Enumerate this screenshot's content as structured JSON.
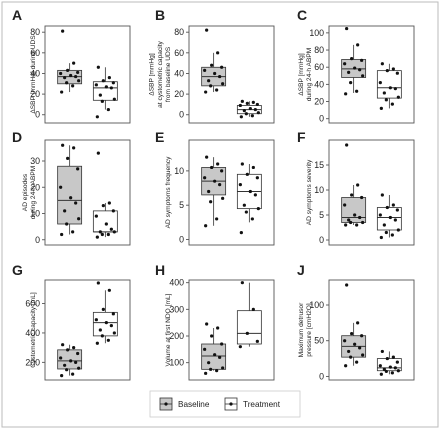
{
  "colors": {
    "baseline_fill": "#c8c8c8",
    "treatment_fill": "#ffffff",
    "stroke": "#333333",
    "point": "#111111",
    "frame": "#555555",
    "panel_border": "#bbbbbb"
  },
  "legend": {
    "baseline_label": "Baseline",
    "treatment_label": "Treatment",
    "placement": "bottom-center"
  },
  "chart_data": [
    {
      "type": "box",
      "letter": "A",
      "ylabel": [
        "ΔSBP [mmHg] during UDS"
      ],
      "yticks": [
        0,
        20,
        40,
        60,
        80
      ],
      "ylim": [
        -8,
        86
      ],
      "series": [
        {
          "group": "baseline",
          "stats": {
            "min": 22,
            "q1": 30,
            "median": 37,
            "q3": 43,
            "max": 50
          },
          "points": [
            81,
            50,
            43,
            41,
            40,
            38,
            37,
            36,
            33,
            31,
            28,
            22
          ]
        },
        {
          "group": "treatment",
          "stats": {
            "min": 5,
            "q1": 14,
            "median": 26,
            "q3": 32,
            "max": 46
          },
          "points": [
            46,
            36,
            33,
            31,
            29,
            27,
            26,
            19,
            15,
            13,
            5,
            -2
          ]
        }
      ]
    },
    {
      "type": "box",
      "letter": "B",
      "ylabel": [
        "ΔSBP [mmHg]",
        "at cystometric capacity",
        "from baseline UDS"
      ],
      "yticks": [
        0,
        20,
        40,
        60,
        80
      ],
      "ylim": [
        -8,
        86
      ],
      "series": [
        {
          "group": "baseline",
          "stats": {
            "min": 22,
            "q1": 28,
            "median": 37,
            "q3": 46,
            "max": 60
          },
          "points": [
            82,
            60,
            48,
            46,
            43,
            40,
            37,
            33,
            30,
            28,
            24,
            22
          ]
        },
        {
          "group": "treatment",
          "stats": {
            "min": -2,
            "q1": 1,
            "median": 5,
            "q3": 9,
            "max": 13
          },
          "points": [
            13,
            12,
            11,
            10,
            9,
            6,
            5,
            4,
            2,
            1,
            -1,
            -2
          ]
        }
      ]
    },
    {
      "type": "box",
      "letter": "C",
      "ylabel": [
        "ΔSBP [mmHg]",
        "during 24-h ABPM"
      ],
      "yticks": [
        0,
        20,
        40,
        60,
        80,
        100
      ],
      "ylim": [
        -5,
        108
      ],
      "series": [
        {
          "group": "baseline",
          "stats": {
            "min": 30,
            "q1": 48,
            "median": 58,
            "q3": 69,
            "max": 86
          },
          "points": [
            105,
            86,
            70,
            68,
            64,
            59,
            57,
            54,
            50,
            42,
            32,
            29
          ]
        },
        {
          "group": "treatment",
          "stats": {
            "min": 12,
            "q1": 24,
            "median": 36,
            "q3": 56,
            "max": 64
          },
          "points": [
            64,
            58,
            56,
            53,
            42,
            36,
            35,
            30,
            25,
            22,
            17,
            12
          ]
        }
      ]
    },
    {
      "type": "box",
      "letter": "D",
      "ylabel": [
        "AD episodes",
        "during 24-h ABPM"
      ],
      "yticks": [
        0,
        10,
        20,
        30
      ],
      "ylim": [
        -2,
        38
      ],
      "series": [
        {
          "group": "baseline",
          "stats": {
            "min": 2,
            "q1": 6,
            "median": 15,
            "q3": 28,
            "max": 36
          },
          "points": [
            36,
            35,
            31,
            27,
            20,
            16,
            14,
            11,
            8,
            6,
            3,
            2
          ]
        },
        {
          "group": "treatment",
          "stats": {
            "min": 1,
            "q1": 3,
            "median": 3,
            "q3": 11,
            "max": 14
          },
          "points": [
            33,
            14,
            13,
            11,
            9,
            6,
            4,
            3,
            3,
            2,
            2,
            1
          ]
        }
      ]
    },
    {
      "type": "box",
      "letter": "E",
      "ylabel": [
        "AD symptoms frequency"
      ],
      "yticks": [
        0,
        5,
        10
      ],
      "ylim": [
        -0.8,
        14.5
      ],
      "series": [
        {
          "group": "baseline",
          "stats": {
            "min": 2,
            "q1": 6.5,
            "median": 8.5,
            "q3": 10.5,
            "max": 12
          },
          "points": [
            12,
            11,
            10.5,
            10,
            9,
            8.5,
            8,
            7,
            6,
            5.5,
            3,
            2
          ]
        },
        {
          "group": "treatment",
          "stats": {
            "min": 2.5,
            "q1": 4.5,
            "median": 7,
            "q3": 9.5,
            "max": 11
          },
          "points": [
            11,
            10.5,
            9.5,
            9,
            8,
            7,
            6.5,
            5,
            4.5,
            4,
            3,
            1
          ]
        }
      ]
    },
    {
      "type": "box",
      "letter": "F",
      "ylabel": [
        "AD symptoms severity"
      ],
      "yticks": [
        0,
        5,
        10,
        15
      ],
      "ylim": [
        -1,
        20
      ],
      "series": [
        {
          "group": "baseline",
          "stats": {
            "min": 3,
            "q1": 3.5,
            "median": 4.5,
            "q3": 8.5,
            "max": 11
          },
          "points": [
            19,
            11,
            9,
            8.5,
            7,
            5,
            4.5,
            4,
            3.5,
            3.5,
            3,
            3
          ]
        },
        {
          "group": "treatment",
          "stats": {
            "min": 0.5,
            "q1": 2,
            "median": 4.5,
            "q3": 6.5,
            "max": 9
          },
          "points": [
            9,
            7,
            6.5,
            6,
            5,
            4.5,
            4,
            3,
            2,
            1.5,
            1,
            0.5
          ]
        }
      ]
    },
    {
      "type": "box",
      "letter": "G",
      "ylabel": [
        "Cystometric capacity [mL]"
      ],
      "yticks": [
        200,
        400,
        600
      ],
      "ylim": [
        80,
        760
      ],
      "series": [
        {
          "group": "baseline",
          "stats": {
            "min": 110,
            "q1": 155,
            "median": 210,
            "q3": 285,
            "max": 320
          },
          "points": [
            320,
            300,
            285,
            260,
            230,
            210,
            200,
            180,
            160,
            150,
            120,
            110
          ]
        },
        {
          "group": "treatment",
          "stats": {
            "min": 330,
            "q1": 380,
            "median": 470,
            "q3": 540,
            "max": 690
          },
          "points": [
            740,
            690,
            560,
            530,
            490,
            470,
            450,
            420,
            400,
            380,
            350,
            330
          ]
        }
      ]
    },
    {
      "type": "box",
      "letter": "H",
      "ylabel": [
        "Volume at first NDO [mL]"
      ],
      "yticks": [
        100,
        200,
        300,
        400
      ],
      "ylim": [
        35,
        410
      ],
      "series": [
        {
          "group": "baseline",
          "stats": {
            "min": 70,
            "q1": 75,
            "median": 125,
            "q3": 170,
            "max": 230
          },
          "points": [
            245,
            230,
            200,
            170,
            150,
            130,
            120,
            100,
            80,
            75,
            70,
            60
          ]
        },
        {
          "group": "treatment",
          "stats": {
            "min": 160,
            "q1": 170,
            "median": 210,
            "q3": 295,
            "max": 400
          },
          "points": [
            400,
            300,
            210,
            180,
            160
          ]
        }
      ]
    },
    {
      "type": "box",
      "letter": "J",
      "ylabel": [
        "Maximum detrusor",
        "pressure [cmH2O]"
      ],
      "yticks": [
        0,
        50,
        100
      ],
      "ylim": [
        -5,
        135
      ],
      "series": [
        {
          "group": "baseline",
          "stats": {
            "min": 15,
            "q1": 27,
            "median": 42,
            "q3": 57,
            "max": 75
          },
          "points": [
            128,
            75,
            60,
            57,
            50,
            45,
            40,
            35,
            30,
            27,
            20,
            15
          ]
        },
        {
          "group": "treatment",
          "stats": {
            "min": 3,
            "q1": 8,
            "median": 12,
            "q3": 25,
            "max": 35
          },
          "points": [
            35,
            27,
            25,
            20,
            15,
            13,
            12,
            10,
            8,
            7,
            5,
            3
          ]
        }
      ]
    }
  ]
}
